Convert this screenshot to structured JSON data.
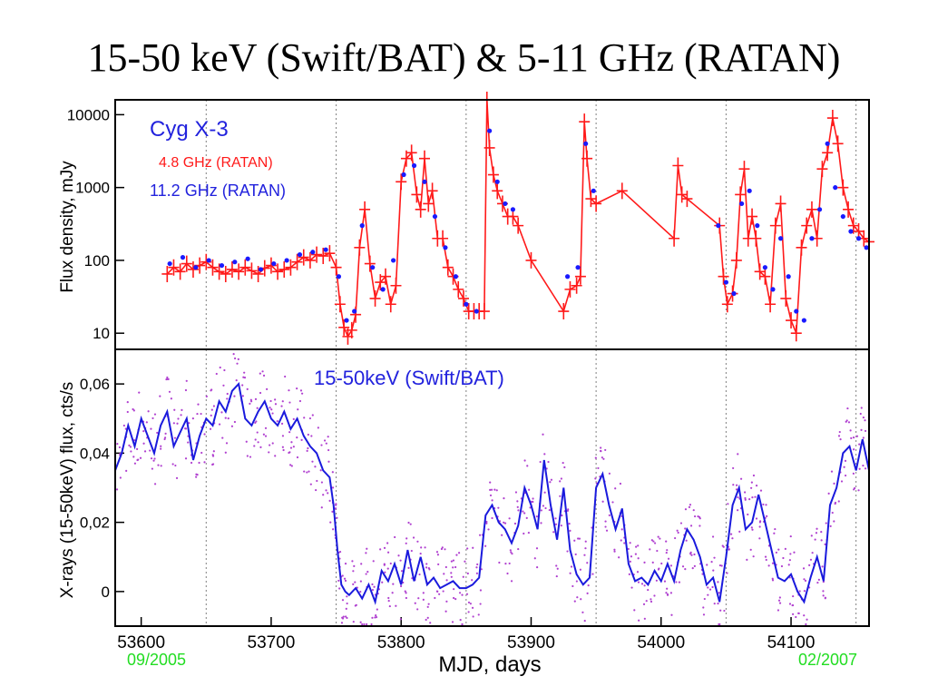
{
  "slide_title": "15-50 keV (Swift/BAT) & 5-11 GHz (RATAN)",
  "colors": {
    "red_series": "#ff1a1a",
    "blue_points": "#1a1aff",
    "bat_line": "#1a1add",
    "bat_points": "#b040d0",
    "date_label": "#22dd22",
    "grid": "#808080"
  },
  "chart_data": [
    {
      "type": "scatter",
      "panel": "top",
      "annotations": {
        "source": "Cyg X-3",
        "series_red_label": "4.8 GHz (RATAN)",
        "series_blue_label": "11.2 GHz (RATAN)"
      },
      "ylabel": "Flux density, mJy",
      "yscale": "log",
      "ylim": [
        6,
        16000
      ],
      "xlim": [
        53580,
        54160
      ],
      "yticks": [
        10,
        100,
        1000,
        10000
      ],
      "ytick_labels": [
        "10",
        "100",
        "1000",
        "10000"
      ],
      "vlines": [
        53650,
        53750,
        53850,
        53950,
        54050,
        54150
      ],
      "series": [
        {
          "name": "4.8 GHz (RATAN)",
          "x": [
            53620,
            53625,
            53630,
            53635,
            53640,
            53645,
            53650,
            53655,
            53660,
            53665,
            53670,
            53675,
            53680,
            53685,
            53690,
            53695,
            53700,
            53705,
            53710,
            53715,
            53720,
            53725,
            53730,
            53735,
            53740,
            53745,
            53750,
            53753,
            53756,
            53759,
            53762,
            53765,
            53768,
            53772,
            53776,
            53780,
            53784,
            53788,
            53792,
            53796,
            53800,
            53804,
            53808,
            53812,
            53815,
            53818,
            53821,
            53824,
            53828,
            53832,
            53836,
            53840,
            53844,
            53848,
            53852,
            53856,
            53860,
            53864,
            53866,
            53868,
            53871,
            53874,
            53878,
            53882,
            53886,
            53890,
            53900,
            53925,
            53930,
            53935,
            53938,
            53941,
            53943,
            53946,
            53950,
            53970,
            54010,
            54013,
            54016,
            54020,
            54045,
            54048,
            54051,
            54055,
            54058,
            54061,
            54064,
            54067,
            54070,
            54073,
            54076,
            54080,
            54084,
            54088,
            54092,
            54096,
            54100,
            54104,
            54108,
            54112,
            54116,
            54120,
            54124,
            54128,
            54132,
            54136,
            54140,
            54144,
            54148,
            54152,
            54156,
            54160
          ],
          "values": [
            65,
            80,
            70,
            90,
            75,
            85,
            95,
            80,
            70,
            65,
            75,
            70,
            80,
            72,
            65,
            78,
            85,
            70,
            75,
            80,
            95,
            110,
            100,
            120,
            115,
            125,
            80,
            25,
            12,
            9,
            11,
            18,
            150,
            500,
            90,
            30,
            50,
            60,
            25,
            45,
            1200,
            2500,
            3000,
            800,
            500,
            2500,
            600,
            900,
            200,
            200,
            80,
            60,
            40,
            30,
            20,
            20,
            20,
            20,
            16000,
            3500,
            1500,
            900,
            600,
            400,
            400,
            300,
            100,
            20,
            40,
            45,
            60,
            8000,
            2500,
            700,
            600,
            900,
            200,
            2000,
            800,
            700,
            300,
            60,
            25,
            35,
            100,
            800,
            1800,
            200,
            400,
            200,
            70,
            60,
            25,
            300,
            600,
            30,
            15,
            10,
            150,
            300,
            500,
            200,
            1800,
            3000,
            9000,
            4000,
            1000,
            500,
            300,
            250,
            200,
            180
          ]
        },
        {
          "name": "11.2 GHz (RATAN)",
          "x": [
            53622,
            53632,
            53642,
            53652,
            53662,
            53672,
            53682,
            53692,
            53702,
            53712,
            53722,
            53732,
            53742,
            53752,
            53758,
            53764,
            53770,
            53778,
            53786,
            53794,
            53802,
            53810,
            53818,
            53826,
            53834,
            53842,
            53850,
            53858,
            53868,
            53874,
            53880,
            53886,
            53928,
            53936,
            53942,
            53948,
            54044,
            54050,
            54056,
            54062,
            54068,
            54074,
            54080,
            54086,
            54092,
            54098,
            54104,
            54110,
            54116,
            54122,
            54128,
            54134,
            54140,
            54146,
            54152,
            54158
          ],
          "values": [
            90,
            110,
            80,
            100,
            85,
            95,
            105,
            75,
            90,
            100,
            120,
            130,
            140,
            60,
            15,
            20,
            300,
            80,
            40,
            100,
            1500,
            2000,
            1200,
            400,
            150,
            60,
            25,
            20,
            6000,
            1200,
            600,
            500,
            60,
            80,
            4000,
            900,
            300,
            50,
            35,
            600,
            900,
            300,
            80,
            40,
            200,
            60,
            20,
            15,
            200,
            500,
            4000,
            1000,
            400,
            250,
            200,
            150
          ]
        }
      ]
    },
    {
      "type": "line",
      "panel": "bottom",
      "annotations": {
        "series_label": "15-50keV (Swift/BAT)"
      },
      "ylabel": "X-rays (15-50keV)  flux, cts/s",
      "xlabel": "MJD, days",
      "xlim": [
        53580,
        54160
      ],
      "ylim": [
        -0.01,
        0.07
      ],
      "xticks": [
        53600,
        53700,
        53800,
        53900,
        54000,
        54100
      ],
      "xtick_labels": [
        "53600",
        "53700",
        "53800",
        "53900",
        "54000",
        "54100"
      ],
      "yticks": [
        0,
        0.02,
        0.04,
        0.06
      ],
      "ytick_labels": [
        "0",
        "0,02",
        "0,04",
        "0,06"
      ],
      "vlines": [
        53650,
        53750,
        53850,
        53950,
        54050,
        54150
      ],
      "date_labels": [
        "09/2005",
        "02/2007"
      ],
      "series": [
        {
          "name": "15-50keV (Swift/BAT)",
          "x": [
            53580,
            53585,
            53590,
            53595,
            53600,
            53605,
            53610,
            53615,
            53620,
            53625,
            53630,
            53635,
            53640,
            53645,
            53650,
            53655,
            53660,
            53665,
            53670,
            53675,
            53680,
            53685,
            53690,
            53695,
            53700,
            53705,
            53710,
            53715,
            53720,
            53725,
            53730,
            53735,
            53740,
            53745,
            53748,
            53751,
            53754,
            53757,
            53760,
            53765,
            53770,
            53775,
            53780,
            53785,
            53790,
            53795,
            53800,
            53805,
            53810,
            53815,
            53820,
            53825,
            53830,
            53835,
            53840,
            53845,
            53850,
            53855,
            53860,
            53865,
            53870,
            53875,
            53880,
            53885,
            53890,
            53895,
            53900,
            53905,
            53910,
            53915,
            53920,
            53925,
            53930,
            53935,
            53940,
            53945,
            53950,
            53955,
            53960,
            53965,
            53970,
            53975,
            53980,
            53985,
            53990,
            53995,
            54000,
            54005,
            54010,
            54015,
            54020,
            54025,
            54030,
            54035,
            54040,
            54045,
            54050,
            54055,
            54060,
            54065,
            54070,
            54075,
            54080,
            54085,
            54090,
            54095,
            54100,
            54105,
            54110,
            54115,
            54120,
            54125,
            54130,
            54135,
            54140,
            54145,
            54150,
            54155,
            54160
          ],
          "values": [
            0.035,
            0.04,
            0.048,
            0.042,
            0.05,
            0.045,
            0.04,
            0.048,
            0.052,
            0.042,
            0.046,
            0.05,
            0.038,
            0.045,
            0.05,
            0.048,
            0.055,
            0.052,
            0.058,
            0.06,
            0.05,
            0.048,
            0.052,
            0.055,
            0.05,
            0.048,
            0.052,
            0.047,
            0.05,
            0.045,
            0.042,
            0.04,
            0.035,
            0.033,
            0.025,
            0.012,
            0.002,
            0.0,
            -0.001,
            0.001,
            -0.002,
            0.002,
            -0.003,
            0.006,
            0.003,
            0.008,
            0.002,
            0.012,
            0.003,
            0.01,
            0.002,
            0.004,
            0.001,
            0.002,
            0.003,
            0.001,
            0.001,
            0.002,
            0.004,
            0.022,
            0.025,
            0.02,
            0.018,
            0.014,
            0.019,
            0.03,
            0.025,
            0.018,
            0.038,
            0.025,
            0.015,
            0.03,
            0.012,
            0.005,
            0.002,
            0.004,
            0.03,
            0.034,
            0.025,
            0.018,
            0.024,
            0.008,
            0.003,
            0.004,
            0.002,
            0.006,
            0.003,
            0.008,
            0.003,
            0.012,
            0.018,
            0.015,
            0.01,
            0.002,
            0.004,
            -0.003,
            0.01,
            0.025,
            0.03,
            0.018,
            0.02,
            0.028,
            0.02,
            0.012,
            0.004,
            0.003,
            0.005,
            0.0,
            -0.003,
            0.004,
            0.01,
            0.003,
            0.025,
            0.03,
            0.04,
            0.042,
            0.035,
            0.044,
            0.035
          ]
        }
      ]
    }
  ]
}
